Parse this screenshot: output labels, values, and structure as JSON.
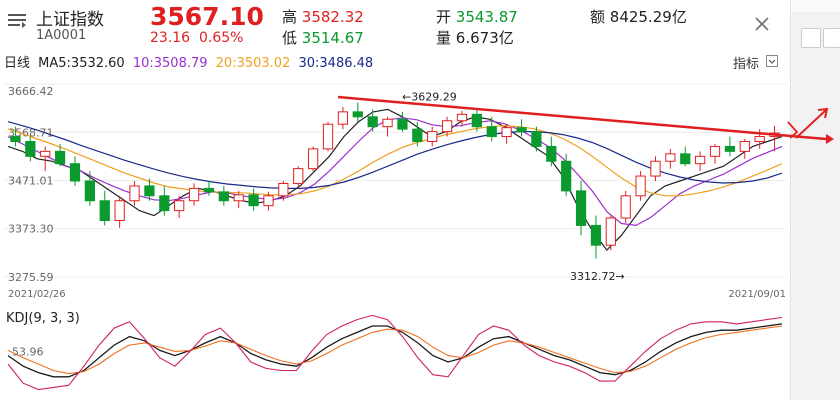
{
  "header": {
    "name": "上证指数",
    "code": "1A0001",
    "price": "3567.10",
    "change": "23.16",
    "change_pct": "0.65%",
    "high_label": "高",
    "high": "3582.32",
    "low_label": "低",
    "low": "3514.67",
    "open_label": "开",
    "open": "3543.87",
    "volume_label": "量",
    "volume": "6.673亿",
    "amount_label": "额",
    "amount": "8425.29亿"
  },
  "legend": {
    "period": "日线",
    "ma5": "MA5:3532.60",
    "ma10": "10:3508.79",
    "ma20": "20:3503.02",
    "ma30": "30:3486.48",
    "indicator_button": "指标"
  },
  "colors": {
    "up": "#e02020",
    "down": "#0a9a2e",
    "ma5": "#222222",
    "ma10": "#9b30d0",
    "ma20": "#f0a020",
    "ma30": "#1a2a8a",
    "trendline": "#e02020"
  },
  "chart_data": [
    {
      "type": "candlestick",
      "title": "",
      "y_ticks": [
        "3666.42",
        "3568.71",
        "3471.01",
        "3373.30",
        "3275.59"
      ],
      "ylim": [
        3275.59,
        3666.42
      ],
      "x_start_label": "2021/02/26",
      "x_end_label": "2021/09/01",
      "annotations": [
        {
          "text": "←3629.29",
          "value": 3629.29,
          "kind": "high"
        },
        {
          "text": "3312.72→",
          "value": 3312.72,
          "kind": "low"
        }
      ],
      "trendline": {
        "from": 3640,
        "to": 3555,
        "color": "#e02020"
      },
      "ma_series": [
        {
          "name": "MA5",
          "values": [
            3540,
            3530,
            3515,
            3510,
            3500,
            3490,
            3470,
            3450,
            3430,
            3410,
            3400,
            3420,
            3440,
            3455,
            3450,
            3440,
            3430,
            3425,
            3430,
            3440,
            3460,
            3490,
            3520,
            3560,
            3590,
            3610,
            3615,
            3600,
            3580,
            3560,
            3570,
            3590,
            3600,
            3595,
            3580,
            3560,
            3540,
            3520,
            3480,
            3420,
            3370,
            3330,
            3360,
            3400,
            3440,
            3460,
            3470,
            3480,
            3490,
            3500,
            3520,
            3540,
            3550,
            3560
          ]
        },
        {
          "name": "10",
          "values": [
            3560,
            3545,
            3530,
            3515,
            3500,
            3490,
            3475,
            3462,
            3450,
            3440,
            3432,
            3430,
            3435,
            3442,
            3448,
            3446,
            3440,
            3436,
            3432,
            3436,
            3446,
            3464,
            3490,
            3520,
            3550,
            3578,
            3594,
            3598,
            3594,
            3584,
            3580,
            3582,
            3588,
            3592,
            3586,
            3574,
            3558,
            3540,
            3516,
            3484,
            3450,
            3408,
            3384,
            3380,
            3396,
            3420,
            3444,
            3460,
            3472,
            3484,
            3500,
            3516,
            3528,
            3540
          ]
        },
        {
          "name": "20",
          "values": [
            3575,
            3566,
            3555,
            3545,
            3534,
            3522,
            3510,
            3498,
            3486,
            3476,
            3466,
            3458,
            3454,
            3450,
            3448,
            3447,
            3446,
            3444,
            3442,
            3442,
            3444,
            3450,
            3460,
            3474,
            3490,
            3508,
            3524,
            3538,
            3548,
            3556,
            3564,
            3570,
            3576,
            3580,
            3582,
            3580,
            3576,
            3568,
            3556,
            3540,
            3520,
            3498,
            3476,
            3458,
            3446,
            3440,
            3440,
            3444,
            3450,
            3458,
            3468,
            3480,
            3492,
            3505
          ]
        },
        {
          "name": "30",
          "values": [
            3590,
            3582,
            3573,
            3563,
            3553,
            3542,
            3532,
            3522,
            3512,
            3503,
            3494,
            3486,
            3479,
            3473,
            3468,
            3464,
            3461,
            3458,
            3456,
            3455,
            3455,
            3457,
            3461,
            3468,
            3477,
            3488,
            3500,
            3512,
            3524,
            3534,
            3543,
            3551,
            3558,
            3564,
            3568,
            3570,
            3570,
            3568,
            3564,
            3557,
            3548,
            3536,
            3522,
            3508,
            3496,
            3486,
            3478,
            3472,
            3468,
            3466,
            3467,
            3470,
            3476,
            3486
          ]
        }
      ],
      "candles": [
        [
          3560,
          3580,
          3540,
          3550
        ],
        [
          3550,
          3560,
          3510,
          3520
        ],
        [
          3520,
          3540,
          3490,
          3530
        ],
        [
          3530,
          3545,
          3500,
          3505
        ],
        [
          3505,
          3520,
          3460,
          3470
        ],
        [
          3470,
          3490,
          3420,
          3430
        ],
        [
          3430,
          3450,
          3380,
          3390
        ],
        [
          3390,
          3440,
          3375,
          3430
        ],
        [
          3430,
          3470,
          3420,
          3460
        ],
        [
          3460,
          3475,
          3430,
          3440
        ],
        [
          3440,
          3460,
          3400,
          3410
        ],
        [
          3410,
          3440,
          3395,
          3430
        ],
        [
          3430,
          3465,
          3420,
          3455
        ],
        [
          3455,
          3470,
          3440,
          3448
        ],
        [
          3448,
          3460,
          3420,
          3430
        ],
        [
          3430,
          3450,
          3415,
          3442
        ],
        [
          3442,
          3455,
          3410,
          3420
        ],
        [
          3420,
          3448,
          3410,
          3440
        ],
        [
          3440,
          3470,
          3430,
          3465
        ],
        [
          3465,
          3500,
          3455,
          3495
        ],
        [
          3495,
          3540,
          3490,
          3535
        ],
        [
          3535,
          3590,
          3530,
          3585
        ],
        [
          3585,
          3620,
          3575,
          3610
        ],
        [
          3610,
          3629,
          3590,
          3600
        ],
        [
          3600,
          3615,
          3570,
          3580
        ],
        [
          3580,
          3600,
          3560,
          3595
        ],
        [
          3595,
          3610,
          3570,
          3575
        ],
        [
          3575,
          3590,
          3540,
          3550
        ],
        [
          3550,
          3580,
          3540,
          3570
        ],
        [
          3570,
          3600,
          3560,
          3592
        ],
        [
          3592,
          3612,
          3580,
          3605
        ],
        [
          3605,
          3615,
          3570,
          3580
        ],
        [
          3580,
          3600,
          3550,
          3560
        ],
        [
          3560,
          3585,
          3545,
          3578
        ],
        [
          3578,
          3595,
          3560,
          3570
        ],
        [
          3570,
          3580,
          3530,
          3540
        ],
        [
          3540,
          3560,
          3500,
          3510
        ],
        [
          3510,
          3525,
          3440,
          3450
        ],
        [
          3450,
          3470,
          3360,
          3380
        ],
        [
          3380,
          3400,
          3312.72,
          3340
        ],
        [
          3340,
          3400,
          3330,
          3395
        ],
        [
          3395,
          3450,
          3385,
          3440
        ],
        [
          3440,
          3490,
          3430,
          3480
        ],
        [
          3480,
          3520,
          3470,
          3510
        ],
        [
          3510,
          3535,
          3495,
          3525
        ],
        [
          3525,
          3540,
          3500,
          3505
        ],
        [
          3505,
          3530,
          3490,
          3520
        ],
        [
          3520,
          3545,
          3505,
          3540
        ],
        [
          3540,
          3560,
          3520,
          3530
        ],
        [
          3530,
          3555,
          3515,
          3550
        ],
        [
          3550,
          3575,
          3535,
          3560
        ],
        [
          3560,
          3582,
          3530,
          3567
        ]
      ]
    },
    {
      "type": "line",
      "title": "KDJ(9, 3, 3)",
      "y_tick": "53.96",
      "series": [
        {
          "name": "K",
          "values": [
            50,
            40,
            34,
            30,
            30,
            36,
            48,
            60,
            68,
            64,
            55,
            50,
            55,
            62,
            68,
            62,
            52,
            46,
            42,
            40,
            48,
            58,
            66,
            72,
            78,
            78,
            72,
            62,
            50,
            44,
            48,
            58,
            66,
            68,
            62,
            56,
            50,
            46,
            40,
            34,
            32,
            36,
            44,
            54,
            62,
            68,
            72,
            74,
            74,
            76,
            78,
            80
          ]
        },
        {
          "name": "D",
          "values": [
            55,
            48,
            42,
            36,
            33,
            35,
            42,
            52,
            60,
            62,
            58,
            54,
            55,
            59,
            64,
            62,
            56,
            50,
            45,
            42,
            45,
            52,
            60,
            66,
            72,
            75,
            74,
            68,
            58,
            50,
            48,
            53,
            60,
            64,
            62,
            58,
            53,
            48,
            43,
            38,
            34,
            35,
            40,
            48,
            56,
            62,
            67,
            70,
            72,
            74,
            76,
            78
          ]
        },
        {
          "name": "J",
          "values": [
            42,
            24,
            18,
            20,
            22,
            40,
            60,
            76,
            82,
            66,
            48,
            40,
            54,
            70,
            76,
            62,
            44,
            38,
            36,
            36,
            54,
            70,
            78,
            84,
            88,
            84,
            68,
            48,
            32,
            30,
            50,
            70,
            78,
            74,
            60,
            50,
            44,
            40,
            34,
            26,
            26,
            40,
            54,
            66,
            74,
            80,
            82,
            82,
            80,
            82,
            84,
            86
          ]
        }
      ]
    }
  ]
}
